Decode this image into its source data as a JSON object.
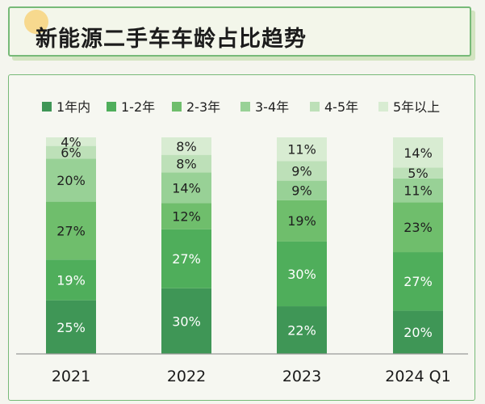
{
  "title": "新能源二手车车龄占比趋势",
  "colors": {
    "title_border": "#77ba78",
    "segments": [
      "#3f9656",
      "#4fae5b",
      "#6fbe6c",
      "#98d196",
      "#bde0b8",
      "#d8ecd2"
    ]
  },
  "chart_data": {
    "type": "bar",
    "stacked": true,
    "percent": true,
    "categories": [
      "2021",
      "2022",
      "2023",
      "2024 Q1"
    ],
    "series": [
      {
        "name": "1年内",
        "values": [
          25,
          30,
          22,
          20
        ]
      },
      {
        "name": "1-2年",
        "values": [
          19,
          27,
          30,
          27
        ]
      },
      {
        "name": "2-3年",
        "values": [
          27,
          12,
          19,
          23
        ]
      },
      {
        "name": "3-4年",
        "values": [
          20,
          14,
          9,
          11
        ]
      },
      {
        "name": "4-5年",
        "values": [
          6,
          8,
          9,
          5
        ]
      },
      {
        "name": "5年以上",
        "values": [
          4,
          8,
          11,
          14
        ]
      }
    ],
    "ylim": [
      0,
      100
    ],
    "legend": "top",
    "grid": false
  }
}
